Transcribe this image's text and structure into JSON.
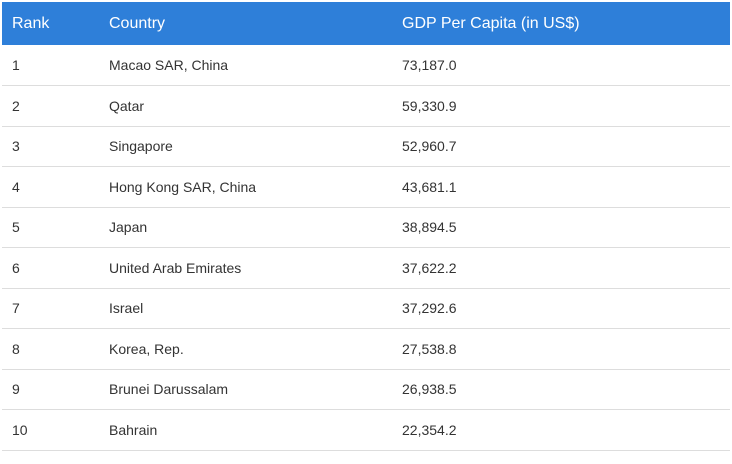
{
  "table": {
    "headers": {
      "rank": "Rank",
      "country": "Country",
      "gdp": "GDP Per Capita (in US$)"
    },
    "rows": [
      {
        "rank": "1",
        "country": "Macao SAR, China",
        "gdp": "73,187.0"
      },
      {
        "rank": "2",
        "country": "Qatar",
        "gdp": "59,330.9"
      },
      {
        "rank": "3",
        "country": "Singapore",
        "gdp": "52,960.7"
      },
      {
        "rank": "4",
        "country": "Hong Kong SAR, China",
        "gdp": "43,681.1"
      },
      {
        "rank": "5",
        "country": "Japan",
        "gdp": "38,894.5"
      },
      {
        "rank": "6",
        "country": "United Arab Emirates",
        "gdp": "37,622.2"
      },
      {
        "rank": "7",
        "country": "Israel",
        "gdp": "37,292.6"
      },
      {
        "rank": "8",
        "country": "Korea, Rep.",
        "gdp": "27,538.8"
      },
      {
        "rank": "9",
        "country": "Brunei Darussalam",
        "gdp": "26,938.5"
      },
      {
        "rank": "10",
        "country": "Bahrain",
        "gdp": "22,354.2"
      }
    ]
  },
  "colors": {
    "header_background": "#2e7fd9",
    "header_text": "#ffffff",
    "row_divider": "#dddddd",
    "body_text": "#333333"
  }
}
